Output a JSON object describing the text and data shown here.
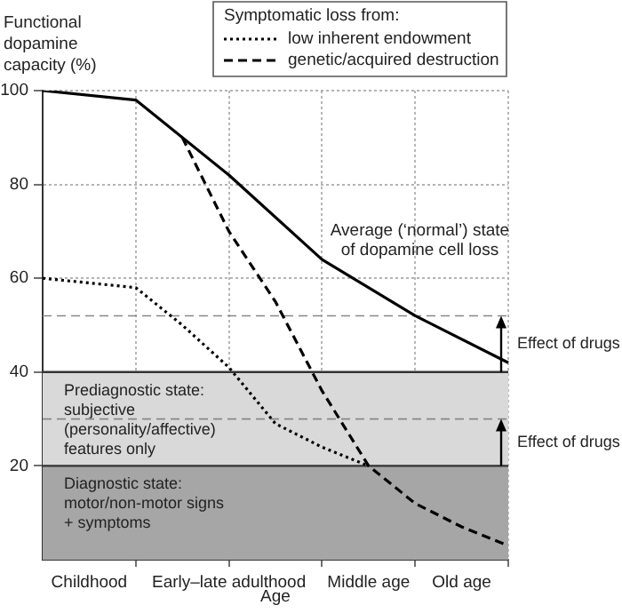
{
  "chart_data": {
    "type": "line",
    "ylabel": "Functional dopamine capacity (%)",
    "xlabel": "Age",
    "legend_title": "Symptomatic loss from:",
    "legend": "top right",
    "grid": true,
    "categories": [
      null,
      "Childhood",
      null,
      null,
      "Early–late adulthood",
      null,
      null,
      "Middle age",
      null,
      "Old age",
      null
    ],
    "ylim": [
      0,
      100
    ],
    "yticks": [
      20,
      40,
      60,
      80,
      100
    ],
    "series": [
      {
        "color": "#000000",
        "line_style": "solid",
        "values": [
          100,
          null,
          98,
          null,
          82,
          null,
          64,
          null,
          52,
          null,
          42
        ]
      },
      {
        "name": "low inherent endowment",
        "color": "#000000",
        "line_style": "dotted",
        "values": [
          60,
          null,
          58,
          50,
          41,
          29,
          24,
          20,
          null,
          null,
          null
        ]
      },
      {
        "name": "genetic/acquired destruction",
        "color": "#000000",
        "line_style": "dashed",
        "values": [
          null,
          null,
          null,
          90,
          70,
          55,
          36,
          20,
          12,
          7,
          3
        ]
      }
    ],
    "bands": [
      {
        "axis": "y",
        "from": 20,
        "to": 40,
        "color": "#d9d9d9",
        "label": "Prediagnostic state: subjective (personality/affective) features only"
      },
      {
        "axis": "y",
        "from": 0,
        "to": 20,
        "color": "#a6a6a6",
        "label": "Diagnostic state: motor/non-motor signs + symptoms"
      }
    ],
    "ref_lines": [
      {
        "axis": "y",
        "value": 52,
        "label": "Effect of drugs",
        "color": "#888888",
        "line_style": "dashed"
      },
      {
        "axis": "y",
        "value": 30,
        "label": "Effect of drugs",
        "color": "#888888",
        "line_style": "dashed"
      }
    ],
    "annotations": [
      "Average (‘normal’) state of dopamine cell loss"
    ]
  }
}
